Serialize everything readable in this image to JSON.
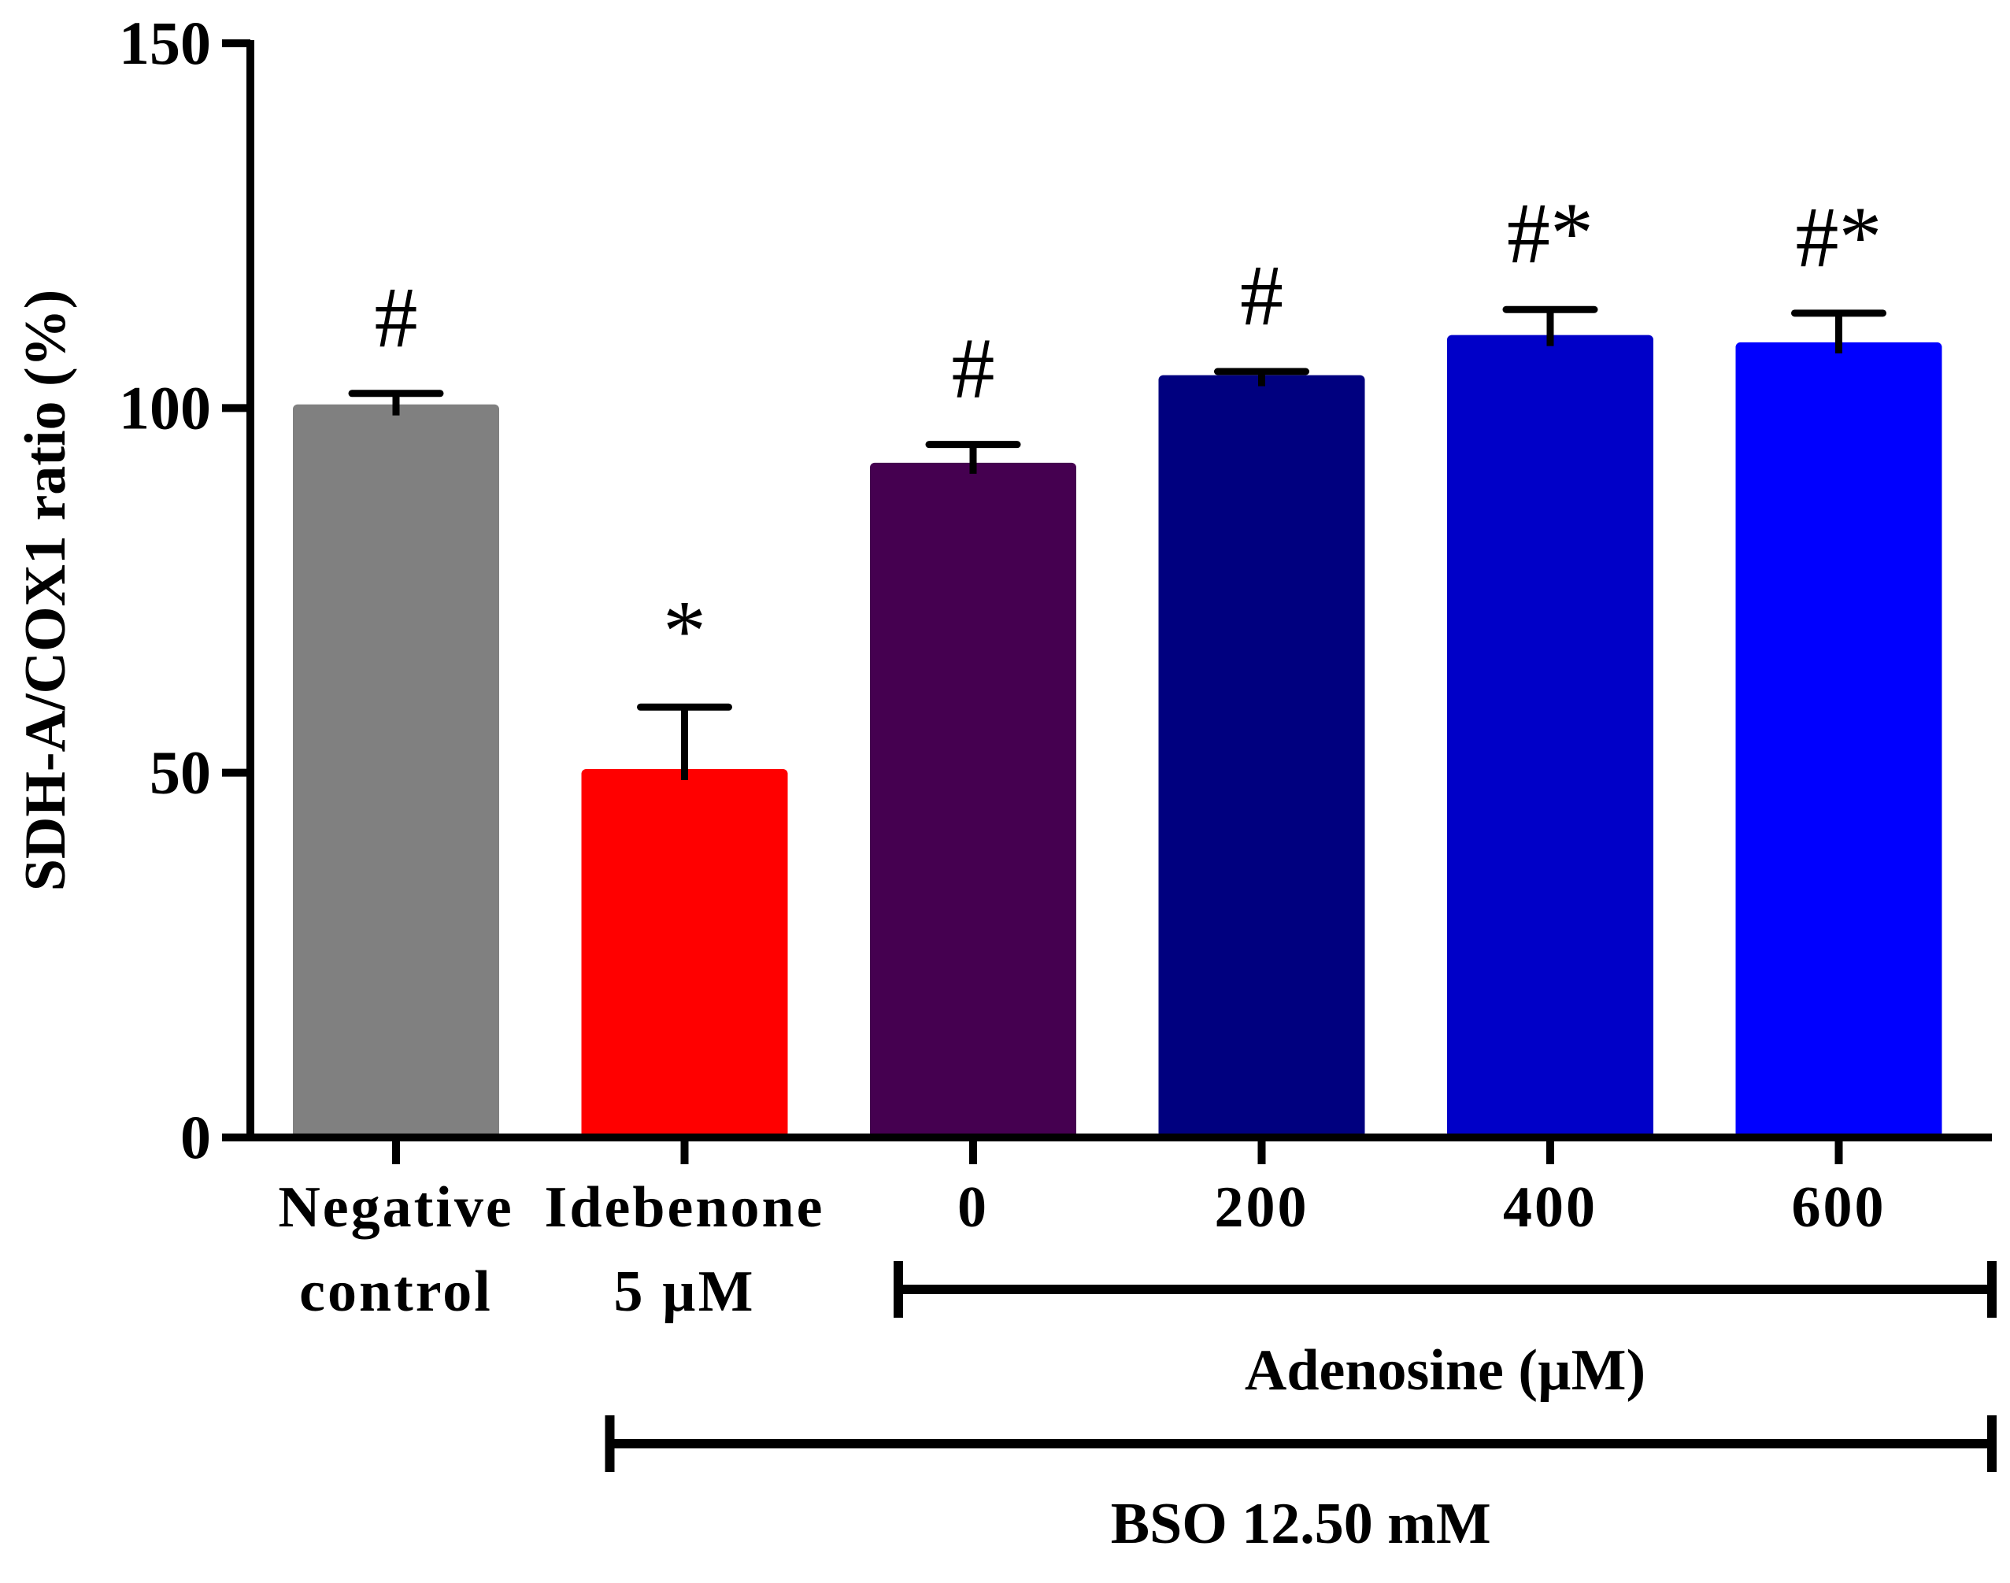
{
  "chart_data": {
    "type": "bar",
    "title": "",
    "xlabel": "",
    "ylabel": "SDH-A/COX1 ratio (%)",
    "ylim": [
      0,
      150
    ],
    "yticks": [
      0,
      50,
      100,
      150
    ],
    "grid": false,
    "categories": [
      {
        "line1": "Negative",
        "line2": "control"
      },
      {
        "line1": "Idebenone",
        "line2": "5 µM"
      },
      {
        "line1": "0",
        "line2": ""
      },
      {
        "line1": "200",
        "line2": ""
      },
      {
        "line1": "400",
        "line2": ""
      },
      {
        "line1": "600",
        "line2": ""
      }
    ],
    "values": [
      100.5,
      50.5,
      92.5,
      104.5,
      110,
      109
    ],
    "errors": [
      1.5,
      8.5,
      2.5,
      0.5,
      3.5,
      4
    ],
    "colors": [
      "#808080",
      "#ff0000",
      "#450050",
      "#00007f",
      "#0000c8",
      "#0000ff"
    ],
    "annotations": [
      "#",
      "*",
      "#",
      "#",
      "#*",
      "#*"
    ],
    "groups": [
      {
        "label": "Adenosine (µM)",
        "from": 2,
        "to": 5
      },
      {
        "label": "BSO 12.50 mM",
        "from": 1,
        "to": 5
      }
    ]
  }
}
